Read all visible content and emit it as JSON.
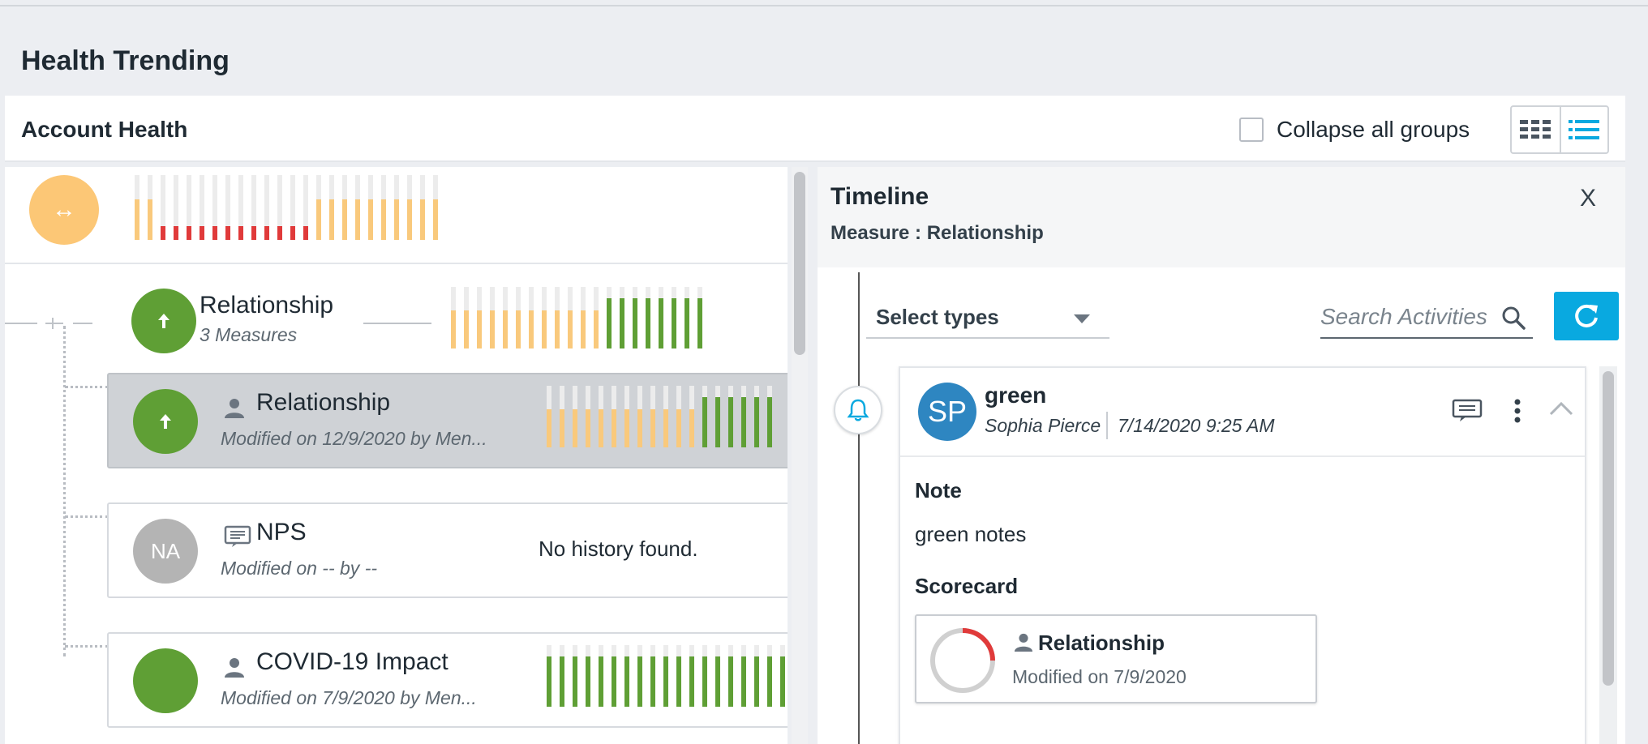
{
  "page": {
    "title": "Health Trending"
  },
  "account_health": {
    "title": "Account Health",
    "collapse_label": "Collapse all groups",
    "summary": {
      "trend_symbol": "↔",
      "bars": [
        "o",
        "o",
        "r",
        "r",
        "r",
        "r",
        "r",
        "r",
        "r",
        "r",
        "r",
        "r",
        "r",
        "r",
        "o",
        "o",
        "o",
        "o",
        "o",
        "o",
        "o",
        "o",
        "o",
        "o"
      ]
    },
    "group": {
      "name": "Relationship",
      "sub": "3 Measures",
      "bars": [
        "o",
        "o",
        "o",
        "o",
        "o",
        "o",
        "o",
        "o",
        "o",
        "o",
        "o",
        "o",
        "g",
        "g",
        "g",
        "g",
        "g",
        "g",
        "g",
        "g"
      ]
    },
    "measures": [
      {
        "name": "Relationship",
        "modified": "Modified on  12/9/2020  by Men...",
        "bars": [
          "o",
          "o",
          "o",
          "o",
          "o",
          "o",
          "o",
          "o",
          "o",
          "o",
          "o",
          "o",
          "g",
          "g",
          "g",
          "g",
          "g",
          "g"
        ]
      },
      {
        "badge": "NA",
        "name": "NPS",
        "modified": "Modified on  --  by --",
        "no_history": "No history found."
      },
      {
        "name": "COVID-19 Impact",
        "modified": "Modified on  7/9/2020  by Men...",
        "bars": [
          "g",
          "g",
          "g",
          "g",
          "g",
          "g",
          "g",
          "g",
          "g",
          "g",
          "g",
          "g",
          "g",
          "g",
          "g",
          "g",
          "g",
          "g",
          "g",
          "g"
        ]
      }
    ]
  },
  "colors": {
    "orange": "#f9c97c",
    "red": "#e03a3a",
    "green": "#5f9f35",
    "accent": "#09a9e0"
  },
  "timeline": {
    "title": "Timeline",
    "subtitle": "Measure : Relationship",
    "close_label": "X",
    "select_types": "Select types",
    "search_placeholder": "Search Activities",
    "activity": {
      "initials": "SP",
      "title": "green",
      "author": "Sophia Pierce",
      "date": "7/14/2020 9:25 AM",
      "note_label": "Note",
      "note_text": "green notes",
      "scorecard_label": "Scorecard",
      "scorecard": {
        "name": "Relationship",
        "modified": "Modified on 7/9/2020"
      }
    }
  }
}
